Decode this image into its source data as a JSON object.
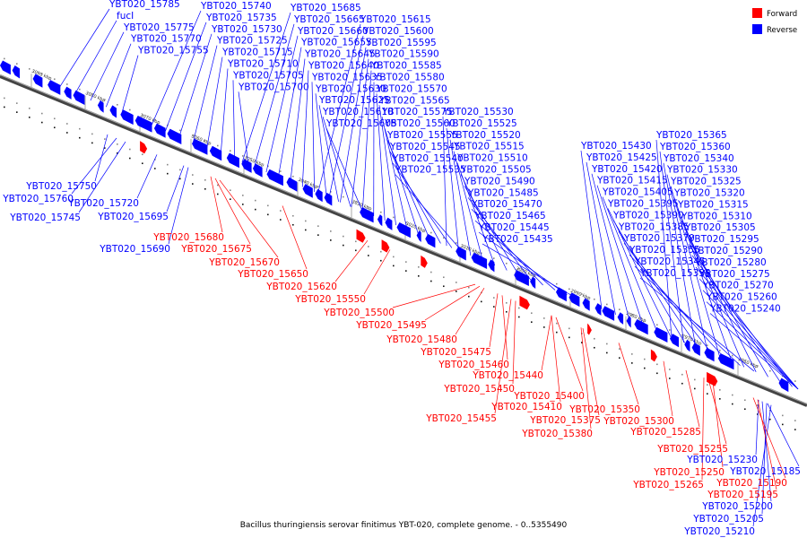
{
  "legend": {
    "forward_label": "Forward",
    "reverse_label": "Reverse",
    "forward_color": "#ff0000",
    "reverse_color": "#0000ff"
  },
  "caption": "Bacillus thuringiensis serovar finitimus YBT-020, complete genome. - 0..5355490",
  "ticks": [
    "3090 kbp",
    "3080 kbp",
    "3070 kbp",
    "3060 kbp",
    "3050 kbp",
    "3040 kbp",
    "3030 kbp",
    "3020 kbp",
    "3010 kbp",
    "3000 kbp",
    "2990 kbp",
    "2980 kbp",
    "2970 kbp",
    "2960 kbp"
  ],
  "reverse_labels": [
    "YBT020_15785",
    "fucI",
    "YBT020_15775",
    "YBT020_15770",
    "YBT020_15755",
    "YBT020_15740",
    "YBT020_15735",
    "YBT020_15730",
    "YBT020_15725",
    "YBT020_15715",
    "YBT020_15710",
    "YBT020_15705",
    "YBT020_15700",
    "YBT020_15685",
    "YBT020_15665",
    "YBT020_15660",
    "YBT020_15655",
    "YBT020_15645",
    "YBT020_15640",
    "YBT020_15635",
    "YBT020_15630",
    "YBT020_15625",
    "YBT020_15610",
    "YBT020_15605",
    "YBT020_15615",
    "YBT020_15600",
    "YBT020_15595",
    "YBT020_15590",
    "YBT020_15585",
    "YBT020_15580",
    "YBT020_15570",
    "YBT020_15565",
    "YBT020_15575",
    "YBT020_15560",
    "YBT020_15555",
    "YBT020_15545",
    "YBT020_15540",
    "YBT020_15535",
    "YBT020_15530",
    "YBT020_15525",
    "YBT020_15520",
    "YBT020_15515",
    "YBT020_15510",
    "YBT020_15505",
    "YBT020_15490",
    "YBT020_15485",
    "YBT020_15470",
    "YBT020_15465",
    "YBT020_15445",
    "YBT020_15435",
    "YBT020_15430",
    "YBT020_15425",
    "YBT020_15420",
    "YBT020_15415",
    "YBT020_15405",
    "YBT020_15395",
    "YBT020_15390",
    "YBT020_15385",
    "YBT020_15370",
    "YBT020_15355",
    "YBT020_15345",
    "YBT020_15335",
    "YBT020_15365",
    "YBT020_15360",
    "YBT020_15340",
    "YBT020_15330",
    "YBT020_15325",
    "YBT020_15320",
    "YBT020_15315",
    "YBT020_15310",
    "YBT020_15305",
    "YBT020_15295",
    "YBT020_15290",
    "YBT020_15280",
    "YBT020_15275",
    "YBT020_15270",
    "YBT020_15260",
    "YBT020_15240",
    "YBT020_15750",
    "YBT020_15760",
    "YBT020_15745",
    "YBT020_15720",
    "YBT020_15695",
    "YBT020_15690",
    "YBT020_15230",
    "YBT020_15185",
    "YBT020_15200",
    "YBT020_15205",
    "YBT020_15210"
  ],
  "forward_labels": [
    "YBT020_15680",
    "YBT020_15675",
    "YBT020_15670",
    "YBT020_15650",
    "YBT020_15620",
    "YBT020_15550",
    "YBT020_15500",
    "YBT020_15495",
    "YBT020_15480",
    "YBT020_15475",
    "YBT020_15460",
    "YBT020_15440",
    "YBT020_15450",
    "YBT020_15455",
    "YBT020_15400",
    "YBT020_15410",
    "YBT020_15375",
    "YBT020_15380",
    "YBT020_15350",
    "YBT020_15300",
    "YBT020_15285",
    "YBT020_15255",
    "YBT020_15250",
    "YBT020_15265",
    "YBT020_15190",
    "YBT020_15195"
  ]
}
